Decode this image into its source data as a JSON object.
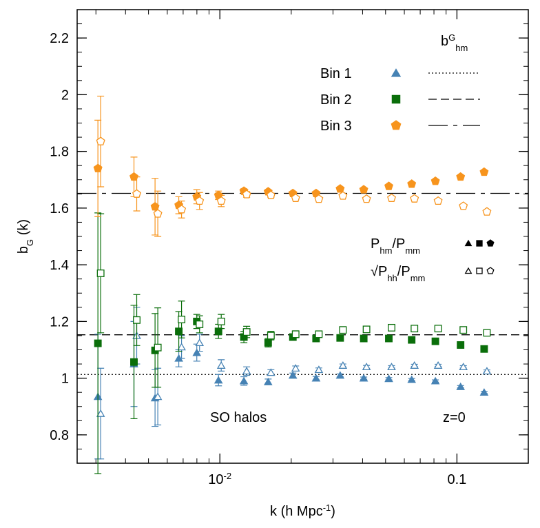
{
  "chart_data": {
    "type": "errorscatter",
    "x_label": {
      "parts": [
        {
          "text": "k (h Mpc"
        },
        {
          "text": "-1",
          "sup": true
        },
        {
          "text": ")"
        }
      ]
    },
    "y_label": {
      "parts": [
        {
          "text": "b"
        },
        {
          "text": "G",
          "sub": true
        },
        {
          "text": " (k)"
        }
      ]
    },
    "xlim": [
      0.0025,
      0.2
    ],
    "log_x": true,
    "xticks": [
      {
        "value": 0.01,
        "label": "10",
        "exponent": "-2"
      },
      0.1
    ],
    "ylim": [
      0.7,
      2.3
    ],
    "yticks": [
      0.8,
      1,
      1.2,
      1.4,
      1.6,
      1.8,
      2,
      2.2
    ],
    "legend_title": {
      "parts": [
        {
          "text": "b"
        },
        {
          "text": "G",
          "sup": true
        },
        {
          "text": "hm",
          "sub": true
        }
      ]
    },
    "marker_key": [
      {
        "parts": [
          {
            "text": "P"
          },
          {
            "text": "hm",
            "sub": true
          },
          {
            "text": "/P"
          },
          {
            "text": "mm",
            "sub": true
          }
        ],
        "filled": true
      },
      {
        "parts": [
          {
            "text": "√P"
          },
          {
            "text": "hh",
            "sub": true
          },
          {
            "text": "/P"
          },
          {
            "text": "mm",
            "sub": true
          }
        ],
        "filled": false
      }
    ],
    "annotations": [
      "SO halos",
      "z=0"
    ],
    "x": [
      0.0031,
      0.0044,
      0.0054,
      0.0068,
      0.0081,
      0.01,
      0.0128,
      0.0162,
      0.0206,
      0.0258,
      0.0326,
      0.041,
      0.0523,
      0.0653,
      0.0822,
      0.105,
      0.132
    ],
    "series": [
      {
        "name": "Bin 1",
        "color": "#4682b4",
        "marker": "triangle",
        "ref_value": 1.013,
        "ref_dash": "dotted",
        "values": [
          0.935,
          1.05,
          0.93,
          1.07,
          1.09,
          0.993,
          0.99,
          0.987,
          1.01,
          1.0,
          1.01,
          1.0,
          0.998,
          0.995,
          0.99,
          0.97,
          0.95
        ],
        "errors": [
          0.22,
          0.15,
          0.1,
          0.03,
          0.03,
          0.02,
          0.015,
          0.01,
          0.008,
          0.006,
          0.005,
          0.004,
          0.004,
          0.004,
          0.004,
          0.004,
          0.004
        ],
        "values_open": [
          0.875,
          1.15,
          0.935,
          1.11,
          1.125,
          1.045,
          1.025,
          1.02,
          1.035,
          1.03,
          1.045,
          1.04,
          1.04,
          1.045,
          1.045,
          1.04,
          1.025
        ],
        "errors_open": [
          0.16,
          0.1,
          0.1,
          0.04,
          0.03,
          0.02,
          0.015,
          0.01,
          0.008,
          0.006,
          0.005,
          0.005,
          0.004,
          0.004,
          0.004,
          0.004,
          0.004
        ]
      },
      {
        "name": "Bin 2",
        "color": "#0a6e0a",
        "marker": "square",
        "ref_value": 1.153,
        "ref_dash": "dashed",
        "values": [
          1.123,
          1.057,
          1.098,
          1.165,
          1.2,
          1.165,
          1.145,
          1.125,
          1.145,
          1.14,
          1.142,
          1.14,
          1.14,
          1.135,
          1.13,
          1.117,
          1.103
        ],
        "errors": [
          0.46,
          0.2,
          0.13,
          0.07,
          0.025,
          0.025,
          0.02,
          0.015,
          0.01,
          0.01,
          0.006,
          0.006,
          0.005,
          0.005,
          0.005,
          0.005,
          0.005
        ],
        "values_open": [
          1.37,
          1.205,
          1.108,
          1.207,
          1.19,
          1.2,
          1.163,
          1.15,
          1.155,
          1.155,
          1.17,
          1.172,
          1.178,
          1.175,
          1.175,
          1.17,
          1.16
        ],
        "errors_open": [
          0.21,
          0.09,
          0.14,
          0.065,
          0.03,
          0.025,
          0.02,
          0.015,
          0.012,
          0.01,
          0.008,
          0.006,
          0.005,
          0.005,
          0.004,
          0.004,
          0.004
        ]
      },
      {
        "name": "Bin 3",
        "color": "#f7941d",
        "marker": "pentagon",
        "ref_value": 1.652,
        "ref_dash": "longdash",
        "values": [
          1.74,
          1.71,
          1.605,
          1.61,
          1.64,
          1.645,
          1.66,
          1.658,
          1.652,
          1.652,
          1.668,
          1.665,
          1.677,
          1.685,
          1.695,
          1.71,
          1.727
        ],
        "errors": [
          0.17,
          0.07,
          0.1,
          0.03,
          0.025,
          0.015,
          0.008,
          0.006,
          0.005,
          0.005,
          0.004,
          0.004,
          0.004,
          0.004,
          0.004,
          0.004,
          0.004
        ],
        "values_open": [
          1.835,
          1.65,
          1.58,
          1.595,
          1.625,
          1.625,
          1.648,
          1.645,
          1.635,
          1.632,
          1.643,
          1.632,
          1.635,
          1.633,
          1.625,
          1.607,
          1.587
        ],
        "errors_open": [
          0.16,
          0.06,
          0.08,
          0.03,
          0.03,
          0.02,
          0.01,
          0.008,
          0.006,
          0.005,
          0.004,
          0.004,
          0.003,
          0.003,
          0.003,
          0.003,
          0.003
        ]
      }
    ]
  }
}
